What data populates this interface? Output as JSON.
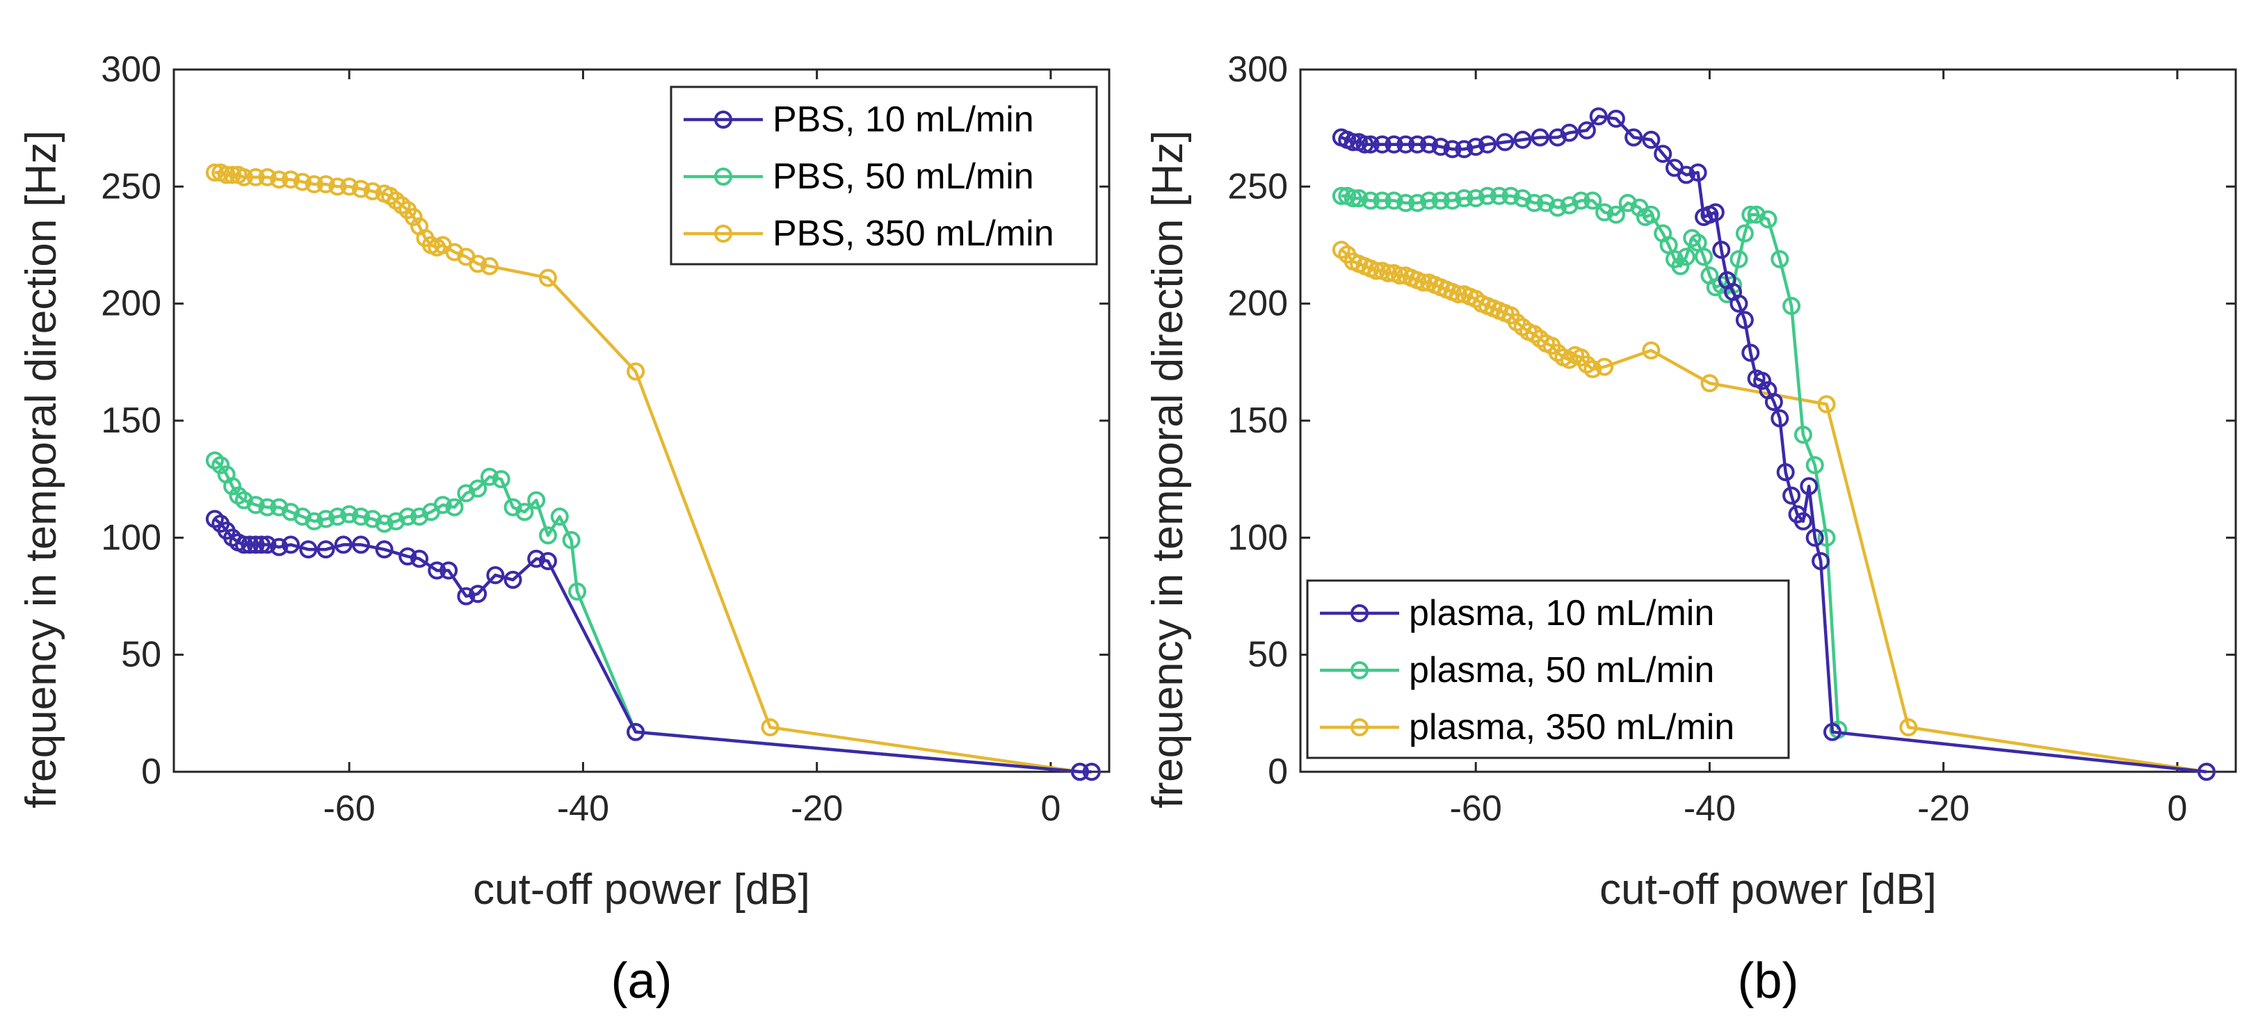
{
  "chart_data": [
    {
      "type": "line",
      "panel_label": "(a)",
      "xlabel": "cut-off power [dB]",
      "ylabel": "frequency in temporal direction [Hz]",
      "xlim": [
        -75,
        5
      ],
      "ylim": [
        0,
        300
      ],
      "xticks": [
        -60,
        -40,
        -20,
        0
      ],
      "yticks": [
        0,
        50,
        100,
        150,
        200,
        250,
        300
      ],
      "legend_position": "top-right",
      "series": [
        {
          "name": "PBS, 10 mL/min",
          "color": "#3b2aa8",
          "x": [
            -71.5,
            -71,
            -70.5,
            -70,
            -69.5,
            -69,
            -68.5,
            -68,
            -67.5,
            -67,
            -66,
            -65,
            -63.5,
            -62,
            -60.5,
            -59,
            -57,
            -55,
            -54,
            -52.5,
            -51.5,
            -50,
            -49,
            -47.5,
            -46,
            -44,
            -43,
            -35.5,
            2.5,
            3.5
          ],
          "y": [
            108,
            106,
            103,
            100,
            98,
            97,
            97,
            97,
            97,
            97,
            96,
            97,
            95,
            95,
            97,
            97,
            95,
            92,
            91,
            86,
            86,
            75,
            76,
            84,
            82,
            91,
            90,
            17,
            0,
            0
          ]
        },
        {
          "name": "PBS, 50 mL/min",
          "color": "#40c98a",
          "x": [
            -71.5,
            -71,
            -70.5,
            -70,
            -69.5,
            -69,
            -68,
            -67,
            -66,
            -65,
            -64,
            -63,
            -62,
            -61,
            -60,
            -59,
            -58,
            -57,
            -56,
            -55,
            -54,
            -53,
            -52,
            -51,
            -50,
            -49,
            -48,
            -47,
            -46,
            -45,
            -44,
            -43,
            -42,
            -41,
            -40.5,
            -35.5,
            2.5
          ],
          "y": [
            133,
            131,
            127,
            122,
            118,
            116,
            114,
            113,
            113,
            111,
            109,
            107,
            108,
            109,
            110,
            109,
            108,
            106,
            107,
            109,
            109,
            111,
            114,
            113,
            119,
            121,
            126,
            125,
            113,
            111,
            116,
            101,
            109,
            99,
            77,
            17,
            0
          ]
        },
        {
          "name": "PBS, 350 mL/min",
          "color": "#e6b730",
          "x": [
            -71.5,
            -71,
            -70.5,
            -70,
            -69.5,
            -69,
            -68,
            -67,
            -66,
            -65,
            -64,
            -63,
            -62,
            -61,
            -60,
            -59,
            -58,
            -57,
            -56.5,
            -56,
            -55.5,
            -55,
            -54.5,
            -54,
            -53.5,
            -53,
            -52.5,
            -52,
            -51,
            -50,
            -49,
            -48,
            -43,
            -35.5,
            -24,
            2.5
          ],
          "y": [
            256,
            256,
            255,
            255,
            255,
            254,
            254,
            254,
            253,
            253,
            252,
            251,
            251,
            250,
            250,
            249,
            248,
            247,
            246,
            244,
            242,
            240,
            237,
            233,
            228,
            225,
            224,
            225,
            222,
            220,
            217,
            216,
            211,
            171,
            19,
            0
          ]
        }
      ]
    },
    {
      "type": "line",
      "panel_label": "(b)",
      "xlabel": "cut-off power [dB]",
      "ylabel": "frequency in temporal direction [Hz]",
      "xlim": [
        -75,
        5
      ],
      "ylim": [
        0,
        300
      ],
      "xticks": [
        -60,
        -40,
        -20,
        0
      ],
      "yticks": [
        0,
        50,
        100,
        150,
        200,
        250,
        300
      ],
      "legend_position": "bottom-left",
      "series": [
        {
          "name": "plasma, 10 mL/min",
          "color": "#3b2aa8",
          "x": [
            -71.5,
            -71,
            -70.5,
            -70,
            -69.5,
            -69,
            -68,
            -67,
            -66,
            -65,
            -64,
            -63,
            -62,
            -61,
            -60,
            -59,
            -57.5,
            -56,
            -54.5,
            -53,
            -52,
            -50.5,
            -49.5,
            -48,
            -46.5,
            -45,
            -44,
            -43,
            -42,
            -41,
            -40.5,
            -40,
            -39.5,
            -39,
            -38.5,
            -38,
            -37.5,
            -37,
            -36.5,
            -36,
            -35.5,
            -35,
            -34.5,
            -34,
            -33.5,
            -33,
            -32.5,
            -32,
            -31.5,
            -31,
            -30.5,
            -29.5,
            2.5
          ],
          "y": [
            271,
            270,
            269,
            269,
            268,
            268,
            268,
            268,
            268,
            268,
            268,
            267,
            266,
            266,
            267,
            268,
            269,
            270,
            271,
            271,
            273,
            274,
            280,
            279,
            271,
            270,
            264,
            258,
            255,
            256,
            237,
            238,
            239,
            223,
            210,
            205,
            200,
            193,
            179,
            168,
            167,
            163,
            158,
            151,
            128,
            118,
            110,
            107,
            122,
            100,
            90,
            17,
            0
          ]
        },
        {
          "name": "plasma, 50 mL/min",
          "color": "#40c98a",
          "x": [
            -71.5,
            -71,
            -70.5,
            -70,
            -69,
            -68,
            -67,
            -66,
            -65,
            -64,
            -63,
            -62,
            -61,
            -60,
            -59,
            -58,
            -57,
            -56,
            -55,
            -54,
            -53,
            -52,
            -51,
            -50,
            -49,
            -48,
            -47,
            -46,
            -45.5,
            -45,
            -44,
            -43.5,
            -43,
            -42.5,
            -42,
            -41.5,
            -41,
            -40.5,
            -40,
            -39.5,
            -39,
            -38.5,
            -38,
            -37.5,
            -37,
            -36.5,
            -36,
            -35,
            -34,
            -33,
            -32,
            -31,
            -30,
            -29
          ],
          "y": [
            246,
            246,
            245,
            245,
            244,
            244,
            244,
            243,
            243,
            244,
            244,
            244,
            245,
            245,
            246,
            246,
            246,
            245,
            243,
            243,
            241,
            242,
            244,
            244,
            239,
            238,
            243,
            241,
            237,
            238,
            230,
            225,
            219,
            216,
            220,
            228,
            226,
            220,
            212,
            207,
            208,
            204,
            208,
            219,
            230,
            238,
            238,
            236,
            219,
            199,
            144,
            131,
            100,
            18
          ]
        },
        {
          "name": "plasma, 350 mL/min",
          "color": "#e6b730",
          "x": [
            -71.5,
            -71,
            -70.5,
            -70,
            -69.5,
            -69,
            -68.5,
            -68,
            -67.5,
            -67,
            -66.5,
            -66,
            -65.5,
            -65,
            -64.5,
            -64,
            -63.5,
            -63,
            -62.5,
            -62,
            -61.5,
            -61,
            -60.5,
            -60,
            -59.5,
            -59,
            -58.5,
            -58,
            -57.5,
            -57,
            -56.5,
            -56,
            -55.5,
            -55,
            -54.5,
            -54,
            -53.5,
            -53,
            -52.5,
            -52,
            -51.5,
            -51,
            -50.5,
            -50,
            -49,
            -45,
            -40,
            -30,
            -23,
            2.5
          ],
          "y": [
            223,
            221,
            218,
            217,
            216,
            215,
            214,
            214,
            213,
            213,
            212,
            212,
            211,
            210,
            209,
            209,
            208,
            207,
            206,
            205,
            204,
            204,
            203,
            202,
            200,
            199,
            198,
            197,
            196,
            195,
            192,
            190,
            188,
            187,
            185,
            183,
            182,
            179,
            177,
            176,
            178,
            177,
            174,
            172,
            173,
            180,
            166,
            157,
            19,
            0
          ]
        }
      ]
    }
  ]
}
